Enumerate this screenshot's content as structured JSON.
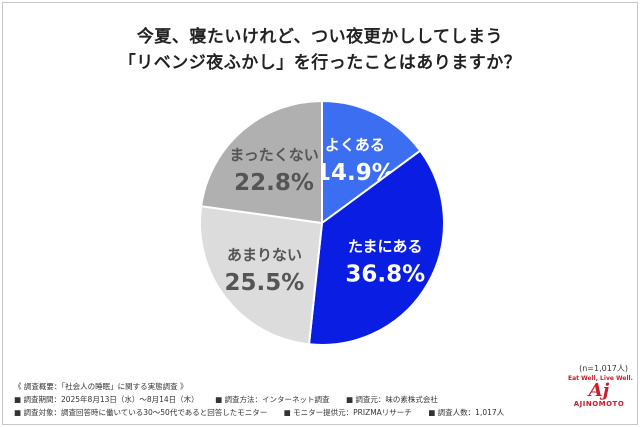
{
  "title_line1": "今夏、寝たいけれど、つい夜更かししてしまう",
  "title_line2": "「リベンジ夜ふかし」を行ったことはありますか？",
  "chart_data": {
    "type": "pie",
    "slices": [
      {
        "label": "よくある",
        "value": 14.9,
        "value_text": "14.9%",
        "color": "#3c6ef2",
        "text_color": "#ffffff"
      },
      {
        "label": "たまにある",
        "value": 36.8,
        "value_text": "36.8%",
        "color": "#0a1ee3",
        "text_color": "#ffffff"
      },
      {
        "label": "あまりない",
        "value": 25.5,
        "value_text": "25.5%",
        "color": "#dcdcdc",
        "text_color": "#555555"
      },
      {
        "label": "まったくない",
        "value": 22.8,
        "value_text": "22.8%",
        "color": "#b0b0b0",
        "text_color": "#555555"
      }
    ]
  },
  "sample_note": "(n=1,017人)",
  "survey": {
    "heading": "《 調査概要：「社会人の睡眠」に関する実態調査 》",
    "period": "■ 調査期間：2025年8月13日（水）～8月14日（木）",
    "method": "■ 調査方法：インターネット調査",
    "organizer": "■ 調査元：味の素株式会社",
    "target": "■ 調査対象：調査回答時に働いている30～50代であると回答したモニター",
    "provider": "■ モニター提供元：PRIZMAリサーチ",
    "count": "■ 調査人数：1,017人"
  },
  "logo": {
    "tagline": "Eat Well, Live Well.",
    "mark": "Aj",
    "brand": "AJINOMOTO"
  }
}
